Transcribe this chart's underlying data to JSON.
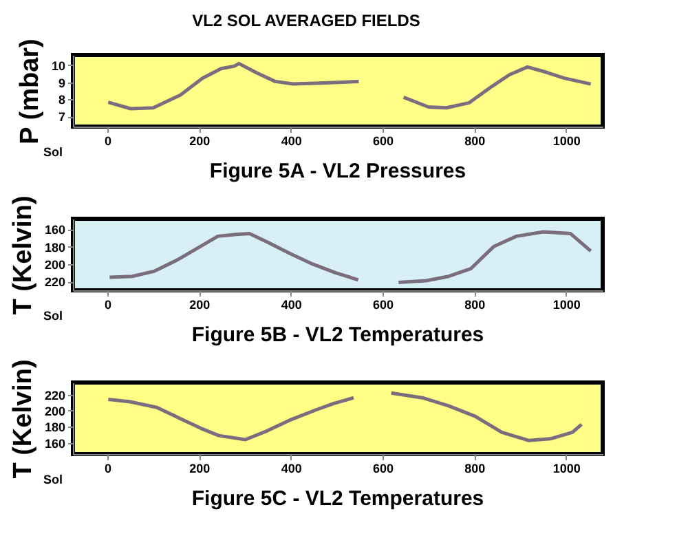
{
  "chart_data": [
    {
      "type": "line",
      "title": "VL2 SOL AVERAGED FIELDS",
      "annotations": [
        "Figure 5A - VL2 Pressures"
      ],
      "xlabel": "Sol",
      "ylabel": "P (mbar)",
      "grid": false,
      "x": [
        2,
        51,
        100,
        159,
        208,
        248,
        277,
        287,
        326,
        366,
        405,
        464,
        548,
        600,
        646,
        700,
        739,
        789,
        838,
        877,
        916,
        956,
        995,
        1054
      ],
      "series": [
        {
          "color": "#7a6e7e",
          "values": [
            7.83,
            7.45,
            7.5,
            8.25,
            9.25,
            9.8,
            9.95,
            10.1,
            9.55,
            9.05,
            8.9,
            8.95,
            9.05,
            null,
            8.12,
            7.55,
            7.5,
            7.8,
            8.75,
            9.45,
            9.9,
            9.6,
            9.25,
            8.9
          ]
        }
      ],
      "xlim": [
        -75,
        1080
      ],
      "xticks": [
        0,
        200,
        400,
        600,
        800,
        1000
      ],
      "ylim": [
        6.4,
        10.6
      ],
      "yticks": [
        7,
        8,
        9,
        10
      ]
    },
    {
      "type": "line",
      "annotations": [
        "Figure 5B - VL2 Temperatures"
      ],
      "xlabel": "Sol",
      "ylabel": "T (Kelvin)",
      "grid": false,
      "x": [
        5,
        54,
        103,
        153,
        202,
        241,
        281,
        310,
        350,
        399,
        448,
        498,
        547,
        590,
        635,
        695,
        744,
        793,
        842,
        892,
        951,
        1010,
        1054
      ],
      "series": [
        {
          "color": "#7a6e7e",
          "values": [
            215,
            214,
            208,
            195,
            180,
            168,
            166,
            165,
            175,
            188,
            200,
            210,
            218,
            null,
            221,
            219,
            214,
            205,
            180,
            168,
            163,
            165,
            185
          ]
        }
      ],
      "xlim": [
        -75,
        1080
      ],
      "xticks": [
        0,
        200,
        400,
        600,
        800,
        1000
      ],
      "ylim": [
        230,
        148
      ],
      "yticks": [
        160,
        180,
        200,
        220
      ]
    },
    {
      "type": "line",
      "annotations": [
        "Figure 5C - VL2  Temperatures"
      ],
      "xlabel": "Sol",
      "ylabel": "T (Kelvin)",
      "grid": false,
      "x": [
        2,
        50,
        108,
        156,
        204,
        243,
        301,
        349,
        397,
        455,
        494,
        537,
        580,
        619,
        687,
        744,
        802,
        860,
        918,
        966,
        1014,
        1034
      ],
      "series": [
        {
          "color": "#7a6e7e",
          "values": [
            214,
            211,
            204,
            191,
            178,
            169,
            164,
            175,
            188,
            201,
            209,
            216,
            null,
            222,
            216,
            206,
            193,
            173,
            163,
            165,
            173,
            183
          ]
        }
      ],
      "xlim": [
        -75,
        1080
      ],
      "xticks": [
        0,
        200,
        400,
        600,
        800,
        1000
      ],
      "ylim": [
        146,
        235
      ],
      "yticks": [
        160,
        180,
        200,
        220
      ]
    }
  ]
}
